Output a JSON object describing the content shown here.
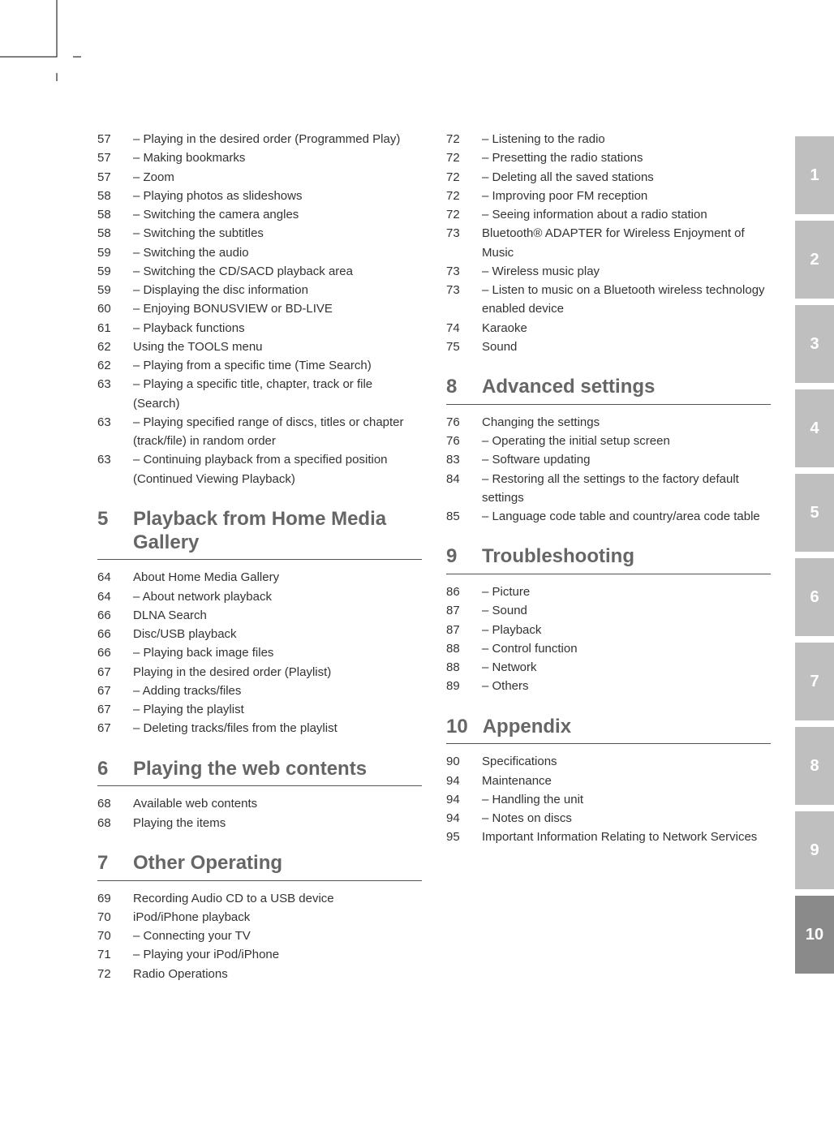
{
  "cropmark_color": "#000000",
  "tabs": [
    {
      "label": "1",
      "style": "light"
    },
    {
      "label": "2",
      "style": "light"
    },
    {
      "label": "3",
      "style": "light"
    },
    {
      "label": "4",
      "style": "light"
    },
    {
      "label": "5",
      "style": "light"
    },
    {
      "label": "6",
      "style": "light"
    },
    {
      "label": "7",
      "style": "light"
    },
    {
      "label": "8",
      "style": "light"
    },
    {
      "label": "9",
      "style": "light"
    },
    {
      "label": "10",
      "style": "dark"
    }
  ],
  "left": {
    "pre": [
      {
        "page": "57",
        "text": "–  Playing in the desired order (Programmed Play)"
      },
      {
        "page": "57",
        "text": "–  Making bookmarks"
      },
      {
        "page": "57",
        "text": "–  Zoom"
      },
      {
        "page": "58",
        "text": "–  Playing photos as slideshows"
      },
      {
        "page": "58",
        "text": "–  Switching the camera angles"
      },
      {
        "page": "58",
        "text": "–  Switching the subtitles"
      },
      {
        "page": "59",
        "text": "–  Switching the audio"
      },
      {
        "page": "59",
        "text": "–  Switching the CD/SACD playback area"
      },
      {
        "page": "59",
        "text": "–  Displaying the disc information"
      },
      {
        "page": "60",
        "text": "–  Enjoying BONUSVIEW or BD-LIVE"
      },
      {
        "page": "61",
        "text": "–  Playback functions"
      },
      {
        "page": "62",
        "text": "Using the TOOLS menu"
      },
      {
        "page": "62",
        "text": "–  Playing from a specific time (Time Search)"
      },
      {
        "page": "63",
        "text": "–  Playing a specific title, chapter, track or file (Search)"
      },
      {
        "page": "63",
        "text": "–  Playing specified range of discs, titles or chapter (track/file) in random order"
      },
      {
        "page": "63",
        "text": "–  Continuing playback from a specified position (Continued Viewing Playback)"
      }
    ],
    "sec5": {
      "num": "5",
      "title": "Playback from Home Media Gallery"
    },
    "items5": [
      {
        "page": "64",
        "text": "About Home Media Gallery"
      },
      {
        "page": "64",
        "text": "–  About network playback"
      },
      {
        "page": "66",
        "text": "DLNA Search"
      },
      {
        "page": "66",
        "text": "Disc/USB playback"
      },
      {
        "page": "66",
        "text": "–  Playing back image files"
      },
      {
        "page": "67",
        "text": "Playing in the desired order (Playlist)"
      },
      {
        "page": "67",
        "text": "–  Adding tracks/files"
      },
      {
        "page": "67",
        "text": "–  Playing the playlist"
      },
      {
        "page": "67",
        "text": "–  Deleting tracks/files from the playlist"
      }
    ],
    "sec6": {
      "num": "6",
      "title": "Playing the web contents"
    },
    "items6": [
      {
        "page": "68",
        "text": "Available web contents"
      },
      {
        "page": "68",
        "text": "Playing the items"
      }
    ],
    "sec7": {
      "num": "7",
      "title": "Other Operating"
    },
    "items7": [
      {
        "page": "69",
        "text": "Recording Audio CD to a USB device"
      },
      {
        "page": "70",
        "text": "iPod/iPhone playback"
      },
      {
        "page": "70",
        "text": "–  Connecting your TV"
      },
      {
        "page": "71",
        "text": "–  Playing your iPod/iPhone"
      },
      {
        "page": "72",
        "text": "Radio Operations"
      }
    ]
  },
  "right": {
    "pre": [
      {
        "page": "72",
        "text": "–  Listening to the radio"
      },
      {
        "page": "72",
        "text": "–  Presetting the radio stations"
      },
      {
        "page": "72",
        "text": "–  Deleting all the saved stations"
      },
      {
        "page": "72",
        "text": "–  Improving poor FM reception"
      },
      {
        "page": "72",
        "text": "–  Seeing information about a radio station"
      },
      {
        "page": "73",
        "text": "Bluetooth® ADAPTER for Wireless Enjoyment of Music"
      },
      {
        "page": "73",
        "text": "–  Wireless music play"
      },
      {
        "page": "73",
        "text": "–  Listen to music on a Bluetooth wireless technology enabled device"
      },
      {
        "page": "74",
        "text": "Karaoke"
      },
      {
        "page": "75",
        "text": "Sound"
      }
    ],
    "sec8": {
      "num": "8",
      "title": "Advanced settings"
    },
    "items8": [
      {
        "page": "76",
        "text": "Changing the settings"
      },
      {
        "page": "76",
        "text": "–  Operating the initial setup screen"
      },
      {
        "page": "83",
        "text": "–  Software updating"
      },
      {
        "page": "84",
        "text": "–  Restoring all the settings to the factory default settings"
      },
      {
        "page": "85",
        "text": "–  Language code table and country/area code table"
      }
    ],
    "sec9": {
      "num": "9",
      "title": "Troubleshooting"
    },
    "items9": [
      {
        "page": "86",
        "text": "–  Picture"
      },
      {
        "page": "87",
        "text": "–  Sound"
      },
      {
        "page": "87",
        "text": "–  Playback"
      },
      {
        "page": "88",
        "text": "–  Control function"
      },
      {
        "page": "88",
        "text": "–  Network"
      },
      {
        "page": "89",
        "text": "–  Others"
      }
    ],
    "sec10": {
      "num": "10",
      "title": "Appendix"
    },
    "items10": [
      {
        "page": "90",
        "text": "Specifications"
      },
      {
        "page": "94",
        "text": "Maintenance"
      },
      {
        "page": "94",
        "text": "–  Handling the unit"
      },
      {
        "page": "94",
        "text": "–  Notes on discs"
      },
      {
        "page": "95",
        "text": "Important Information Relating to Network Services"
      }
    ]
  }
}
